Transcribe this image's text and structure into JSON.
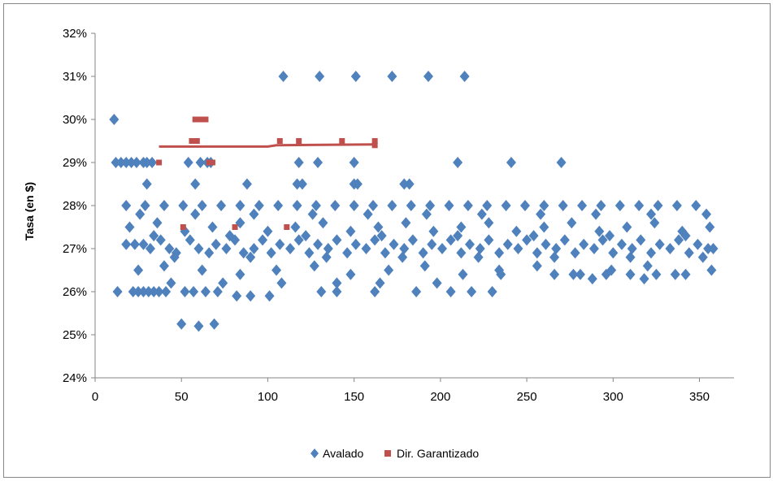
{
  "chart_data": {
    "type": "scatter",
    "title": "",
    "xlabel": "",
    "ylabel": "Tasa (en $)",
    "xlim": [
      0,
      370
    ],
    "ylim": [
      24,
      32
    ],
    "x_ticks": [
      "0",
      "50",
      "100",
      "150",
      "200",
      "250",
      "300",
      "350"
    ],
    "y_ticks": [
      "24%",
      "25%",
      "26%",
      "27%",
      "28%",
      "29%",
      "30%",
      "31%",
      "32%"
    ],
    "grid": false,
    "legend_position": "bottom",
    "series": [
      {
        "name": "Avalado",
        "marker": "diamond",
        "color": "#4f81bd",
        "points": [
          [
            11,
            30
          ],
          [
            109,
            31
          ],
          [
            130,
            31
          ],
          [
            151,
            31
          ],
          [
            172,
            31
          ],
          [
            193,
            31
          ],
          [
            214,
            31
          ],
          [
            12,
            29
          ],
          [
            15,
            29
          ],
          [
            18,
            29
          ],
          [
            21,
            29
          ],
          [
            24,
            29
          ],
          [
            28,
            29
          ],
          [
            30,
            29
          ],
          [
            33,
            29
          ],
          [
            54,
            29
          ],
          [
            61,
            29
          ],
          [
            65,
            29
          ],
          [
            67,
            29
          ],
          [
            118,
            29
          ],
          [
            129,
            29
          ],
          [
            150,
            29
          ],
          [
            210,
            29
          ],
          [
            241,
            29
          ],
          [
            270,
            29
          ],
          [
            30,
            28.5
          ],
          [
            58,
            28.5
          ],
          [
            88,
            28.5
          ],
          [
            117,
            28.5
          ],
          [
            120,
            28.5
          ],
          [
            150,
            28.5
          ],
          [
            152,
            28.5
          ],
          [
            179,
            28.5
          ],
          [
            182,
            28.5
          ],
          [
            50,
            25.25
          ],
          [
            60,
            25.2
          ],
          [
            69,
            25.25
          ],
          [
            13,
            26
          ],
          [
            22,
            26
          ],
          [
            25,
            26
          ],
          [
            28,
            26
          ],
          [
            31,
            26
          ],
          [
            34,
            26
          ],
          [
            37,
            26
          ],
          [
            41,
            26
          ],
          [
            52,
            26
          ],
          [
            57,
            26
          ],
          [
            64,
            26
          ],
          [
            71,
            26
          ],
          [
            82,
            25.9
          ],
          [
            90,
            25.9
          ],
          [
            101,
            25.9
          ],
          [
            131,
            26
          ],
          [
            140,
            26
          ],
          [
            162,
            26
          ],
          [
            186,
            26
          ],
          [
            206,
            26
          ],
          [
            218,
            26
          ],
          [
            230,
            26
          ],
          [
            18,
            27.1
          ],
          [
            23,
            27.1
          ],
          [
            28,
            27.1
          ],
          [
            32,
            27.0
          ],
          [
            38,
            27.2
          ],
          [
            43,
            27.0
          ],
          [
            47,
            26.9
          ],
          [
            55,
            27.2
          ],
          [
            60,
            27.0
          ],
          [
            66,
            26.9
          ],
          [
            70,
            27.1
          ],
          [
            76,
            27.0
          ],
          [
            81,
            27.2
          ],
          [
            86,
            26.9
          ],
          [
            92,
            27.0
          ],
          [
            97,
            27.2
          ],
          [
            102,
            26.9
          ],
          [
            107,
            27.1
          ],
          [
            113,
            27.0
          ],
          [
            118,
            27.2
          ],
          [
            124,
            26.9
          ],
          [
            129,
            27.1
          ],
          [
            135,
            27.0
          ],
          [
            140,
            27.2
          ],
          [
            146,
            26.9
          ],
          [
            151,
            27.1
          ],
          [
            157,
            27.0
          ],
          [
            162,
            27.2
          ],
          [
            168,
            26.9
          ],
          [
            173,
            27.1
          ],
          [
            179,
            27.0
          ],
          [
            184,
            27.2
          ],
          [
            190,
            26.9
          ],
          [
            195,
            27.1
          ],
          [
            201,
            27.0
          ],
          [
            206,
            27.2
          ],
          [
            212,
            26.9
          ],
          [
            217,
            27.1
          ],
          [
            223,
            27.0
          ],
          [
            228,
            27.2
          ],
          [
            234,
            26.9
          ],
          [
            239,
            27.1
          ],
          [
            245,
            27.0
          ],
          [
            250,
            27.2
          ],
          [
            256,
            26.9
          ],
          [
            261,
            27.1
          ],
          [
            267,
            27.0
          ],
          [
            272,
            27.2
          ],
          [
            278,
            26.9
          ],
          [
            283,
            27.1
          ],
          [
            289,
            27.0
          ],
          [
            294,
            27.2
          ],
          [
            300,
            26.9
          ],
          [
            305,
            27.1
          ],
          [
            311,
            27.0
          ],
          [
            316,
            27.2
          ],
          [
            322,
            26.9
          ],
          [
            327,
            27.1
          ],
          [
            333,
            27.0
          ],
          [
            338,
            27.2
          ],
          [
            344,
            26.9
          ],
          [
            349,
            27.1
          ],
          [
            355,
            27.0
          ],
          [
            358,
            27.0
          ],
          [
            25,
            26.5
          ],
          [
            40,
            26.6
          ],
          [
            62,
            26.5
          ],
          [
            84,
            26.4
          ],
          [
            105,
            26.5
          ],
          [
            127,
            26.6
          ],
          [
            148,
            26.4
          ],
          [
            170,
            26.5
          ],
          [
            191,
            26.6
          ],
          [
            213,
            26.4
          ],
          [
            234,
            26.5
          ],
          [
            256,
            26.6
          ],
          [
            277,
            26.4
          ],
          [
            299,
            26.5
          ],
          [
            320,
            26.6
          ],
          [
            342,
            26.4
          ],
          [
            20,
            27.5
          ],
          [
            36,
            27.6
          ],
          [
            52,
            27.4
          ],
          [
            68,
            27.5
          ],
          [
            84,
            27.6
          ],
          [
            100,
            27.4
          ],
          [
            116,
            27.5
          ],
          [
            132,
            27.6
          ],
          [
            148,
            27.4
          ],
          [
            164,
            27.5
          ],
          [
            180,
            27.6
          ],
          [
            196,
            27.4
          ],
          [
            212,
            27.5
          ],
          [
            228,
            27.6
          ],
          [
            244,
            27.4
          ],
          [
            260,
            27.5
          ],
          [
            276,
            27.6
          ],
          [
            292,
            27.4
          ],
          [
            308,
            27.5
          ],
          [
            324,
            27.6
          ],
          [
            340,
            27.4
          ],
          [
            356,
            27.5
          ],
          [
            18,
            28
          ],
          [
            29,
            28
          ],
          [
            40,
            28
          ],
          [
            51,
            28
          ],
          [
            62,
            28
          ],
          [
            73,
            28
          ],
          [
            84,
            28
          ],
          [
            95,
            28
          ],
          [
            106,
            28
          ],
          [
            117,
            28
          ],
          [
            128,
            28
          ],
          [
            139,
            28
          ],
          [
            150,
            28
          ],
          [
            161,
            28
          ],
          [
            172,
            28
          ],
          [
            183,
            28
          ],
          [
            194,
            28
          ],
          [
            205,
            28
          ],
          [
            216,
            28
          ],
          [
            227,
            28
          ],
          [
            238,
            28
          ],
          [
            249,
            28
          ],
          [
            260,
            28
          ],
          [
            271,
            28
          ],
          [
            282,
            28
          ],
          [
            293,
            28
          ],
          [
            304,
            28
          ],
          [
            315,
            28
          ],
          [
            326,
            28
          ],
          [
            337,
            28
          ],
          [
            348,
            28
          ],
          [
            235,
            26.4
          ],
          [
            266,
            26.4
          ],
          [
            281,
            26.4
          ],
          [
            296,
            26.4
          ],
          [
            310,
            26.4
          ],
          [
            325,
            26.4
          ],
          [
            336,
            26.4
          ],
          [
            357,
            26.5
          ],
          [
            288,
            26.3
          ],
          [
            318,
            26.3
          ],
          [
            44,
            26.2
          ],
          [
            74,
            26.2
          ],
          [
            108,
            26.2
          ],
          [
            140,
            26.2
          ],
          [
            165,
            26.2
          ],
          [
            198,
            26.2
          ],
          [
            26,
            27.8
          ],
          [
            58,
            27.8
          ],
          [
            92,
            27.8
          ],
          [
            126,
            27.8
          ],
          [
            158,
            27.8
          ],
          [
            192,
            27.8
          ],
          [
            224,
            27.8
          ],
          [
            258,
            27.8
          ],
          [
            290,
            27.8
          ],
          [
            322,
            27.8
          ],
          [
            354,
            27.8
          ],
          [
            34,
            27.3
          ],
          [
            78,
            27.3
          ],
          [
            122,
            27.3
          ],
          [
            166,
            27.3
          ],
          [
            210,
            27.3
          ],
          [
            254,
            27.3
          ],
          [
            298,
            27.3
          ],
          [
            342,
            27.3
          ],
          [
            46,
            26.8
          ],
          [
            90,
            26.8
          ],
          [
            134,
            26.8
          ],
          [
            178,
            26.8
          ],
          [
            222,
            26.8
          ],
          [
            266,
            26.8
          ],
          [
            310,
            26.8
          ],
          [
            352,
            26.8
          ]
        ]
      },
      {
        "name": "Dir. Garantizado",
        "marker": "square",
        "color": "#c0504d",
        "points": [
          [
            37,
            29
          ],
          [
            51,
            27.5
          ],
          [
            56,
            29.5
          ],
          [
            58,
            30
          ],
          [
            60,
            30
          ],
          [
            62,
            30
          ],
          [
            64,
            30
          ],
          [
            59,
            29.5
          ],
          [
            66,
            29
          ],
          [
            68,
            29
          ],
          [
            81,
            27.5
          ],
          [
            107,
            29.5
          ],
          [
            111,
            27.5
          ],
          [
            118,
            29.5
          ],
          [
            143,
            29.5
          ],
          [
            162,
            29.5
          ],
          [
            162,
            29.4
          ]
        ],
        "line": [
          [
            37,
            29.37
          ],
          [
            100,
            29.37
          ],
          [
            105,
            29.4
          ],
          [
            162,
            29.42
          ]
        ]
      }
    ]
  }
}
